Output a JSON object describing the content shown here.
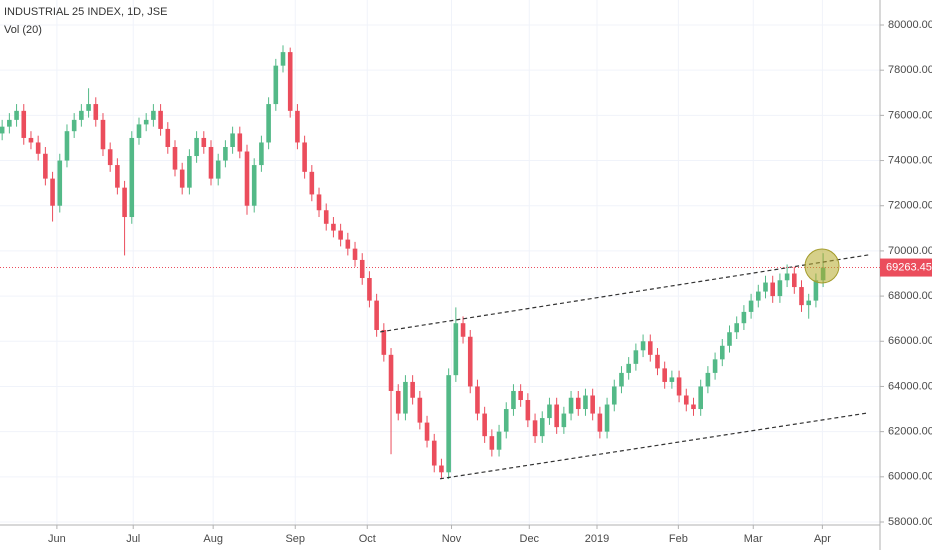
{
  "chart_data": {
    "type": "candlestick",
    "title": "INDUSTRIAL 25 INDEX, 1D, JSE",
    "subtitle": "Vol (20)",
    "up_color": "#53b987",
    "down_color": "#eb4d5c",
    "xlim": [
      -0.3,
      121.9
    ],
    "xticks": [
      {
        "value": 7.6,
        "label": "Jun"
      },
      {
        "value": 18.2,
        "label": "Jul"
      },
      {
        "value": 29.3,
        "label": "Aug"
      },
      {
        "value": 40.7,
        "label": "Sep"
      },
      {
        "value": 50.7,
        "label": "Oct"
      },
      {
        "value": 62.4,
        "label": "Nov"
      },
      {
        "value": 73.2,
        "label": "Dec"
      },
      {
        "value": 82.6,
        "label": "2019"
      },
      {
        "value": 93.9,
        "label": "Feb"
      },
      {
        "value": 104.3,
        "label": "Mar"
      },
      {
        "value": 113.9,
        "label": "Apr"
      }
    ],
    "ylim": [
      58000,
      80000
    ],
    "yticks": [
      {
        "value": 58000,
        "label": "58000.00"
      },
      {
        "value": 60000,
        "label": "60000.00"
      },
      {
        "value": 62000,
        "label": "62000.00"
      },
      {
        "value": 64000,
        "label": "64000.00"
      },
      {
        "value": 66000,
        "label": "66000.00"
      },
      {
        "value": 68000,
        "label": "68000.00"
      },
      {
        "value": 70000,
        "label": "70000.00"
      },
      {
        "value": 72000,
        "label": "72000.00"
      },
      {
        "value": 74000,
        "label": "74000.00"
      },
      {
        "value": 76000,
        "label": "76000.00"
      },
      {
        "value": 78000,
        "label": "78000.00"
      },
      {
        "value": 80000,
        "label": "80000.00"
      }
    ],
    "last_price": 69263.45,
    "trendlines": [
      {
        "x": [
          52.5,
          120.3
        ],
        "y": [
          66416,
          69823
        ]
      },
      {
        "x": [
          60.8,
          120.3
        ],
        "y": [
          59912,
          62832
        ]
      }
    ],
    "candles": {
      "open": [
        75200,
        75500,
        75800,
        76200,
        75000,
        74800,
        74300,
        73200,
        72000,
        74000,
        75300,
        75800,
        76200,
        76500,
        75800,
        74500,
        73800,
        72800,
        71500,
        75000,
        75600,
        75800,
        76200,
        75400,
        74600,
        73600,
        72800,
        74200,
        75000,
        74600,
        73200,
        74000,
        74600,
        75200,
        74400,
        72000,
        73800,
        74800,
        76500,
        78200,
        78800,
        76200,
        74800,
        73500,
        72500,
        71800,
        71200,
        70900,
        70500,
        70100,
        69600,
        68800,
        67800,
        66500,
        65400,
        63800,
        62800,
        64200,
        63500,
        62400,
        61600,
        60500,
        60200,
        64500,
        66800,
        66200,
        64000,
        62800,
        61800,
        61200,
        62000,
        63000,
        63800,
        63400,
        62500,
        61800,
        62600,
        63200,
        62200,
        62800,
        63500,
        63000,
        63600,
        62800,
        62000,
        63200,
        64000,
        64600,
        65000,
        65600,
        66000,
        65400,
        64800,
        64200,
        64400,
        63600,
        63200,
        63000,
        64000,
        64600,
        65200,
        65800,
        66400,
        66800,
        67300,
        67800,
        68200,
        68600,
        68000,
        68700,
        69000,
        68400,
        67600,
        67800,
        68700
      ],
      "high": [
        75800,
        76100,
        76500,
        76500,
        75300,
        75100,
        74600,
        73500,
        74300,
        75600,
        76100,
        76500,
        77200,
        76800,
        76100,
        74800,
        74100,
        73100,
        75300,
        75900,
        76100,
        76500,
        76500,
        75700,
        74900,
        73900,
        74500,
        75300,
        75300,
        74900,
        74300,
        74900,
        75500,
        75500,
        74700,
        74100,
        75100,
        76800,
        78500,
        79100,
        79000,
        76500,
        75100,
        73800,
        72800,
        72100,
        71500,
        71200,
        70800,
        70400,
        69900,
        69100,
        68100,
        66800,
        65700,
        64100,
        64500,
        64500,
        63800,
        62700,
        61900,
        60800,
        64800,
        67500,
        67100,
        66500,
        64300,
        63100,
        62100,
        62300,
        63300,
        64100,
        64100,
        63700,
        62800,
        62900,
        63500,
        63500,
        63100,
        63800,
        63800,
        63900,
        63900,
        63100,
        63500,
        64300,
        64900,
        65300,
        65900,
        66300,
        66300,
        65700,
        65100,
        64700,
        64700,
        63900,
        63500,
        64300,
        64900,
        65500,
        66100,
        66700,
        67100,
        67600,
        68100,
        68500,
        68900,
        68900,
        69000,
        69400,
        69300,
        68700,
        68100,
        69000,
        69900
      ],
      "low": [
        74900,
        75200,
        75500,
        74700,
        74500,
        74000,
        72900,
        71300,
        71700,
        73700,
        75000,
        75500,
        75900,
        75500,
        74200,
        73500,
        72500,
        69800,
        71200,
        74700,
        75300,
        75500,
        75100,
        74300,
        73300,
        72500,
        72500,
        73900,
        74300,
        72900,
        72900,
        73700,
        74300,
        74100,
        71600,
        71700,
        73500,
        74500,
        76200,
        77900,
        75900,
        74500,
        73200,
        72200,
        71500,
        70900,
        70600,
        70200,
        69800,
        69300,
        68500,
        67500,
        66200,
        65100,
        61000,
        62500,
        62500,
        63200,
        62100,
        61300,
        60200,
        59900,
        59900,
        64200,
        65900,
        63700,
        62500,
        61500,
        60900,
        60900,
        61700,
        62700,
        63100,
        62200,
        61500,
        61500,
        62300,
        61900,
        61900,
        62500,
        62700,
        62700,
        62500,
        61700,
        61700,
        62900,
        63700,
        64300,
        64700,
        65300,
        65100,
        64500,
        63900,
        63900,
        63300,
        62900,
        62700,
        62700,
        63700,
        64300,
        64900,
        65500,
        66100,
        66500,
        67000,
        67500,
        67900,
        67700,
        67700,
        68400,
        68100,
        67300,
        67000,
        67500,
        68400
      ],
      "close": [
        75500,
        75800,
        76200,
        75000,
        74800,
        74300,
        73200,
        72000,
        74000,
        75300,
        75800,
        76200,
        76500,
        75800,
        74500,
        73800,
        72800,
        71500,
        75000,
        75600,
        75800,
        76200,
        75400,
        74600,
        73600,
        72800,
        74200,
        75000,
        74600,
        73200,
        74000,
        74600,
        75200,
        74400,
        72000,
        73800,
        74800,
        76500,
        78200,
        78800,
        76200,
        74800,
        73500,
        72500,
        71800,
        71200,
        70900,
        70500,
        70100,
        69600,
        68800,
        67800,
        66500,
        65400,
        63800,
        62800,
        64200,
        63500,
        62400,
        61600,
        60500,
        60200,
        64500,
        66800,
        66200,
        64000,
        62800,
        61800,
        61200,
        62000,
        63000,
        63800,
        63400,
        62500,
        61800,
        62600,
        63200,
        62200,
        62800,
        63500,
        63000,
        63600,
        62800,
        62000,
        63200,
        64000,
        64600,
        65000,
        65600,
        66000,
        65400,
        64800,
        64200,
        64400,
        63600,
        63200,
        63000,
        64000,
        64600,
        65200,
        65800,
        66400,
        66800,
        67300,
        67800,
        68200,
        68600,
        68000,
        68700,
        69000,
        68400,
        67600,
        67800,
        68700,
        69263.45
      ]
    }
  }
}
